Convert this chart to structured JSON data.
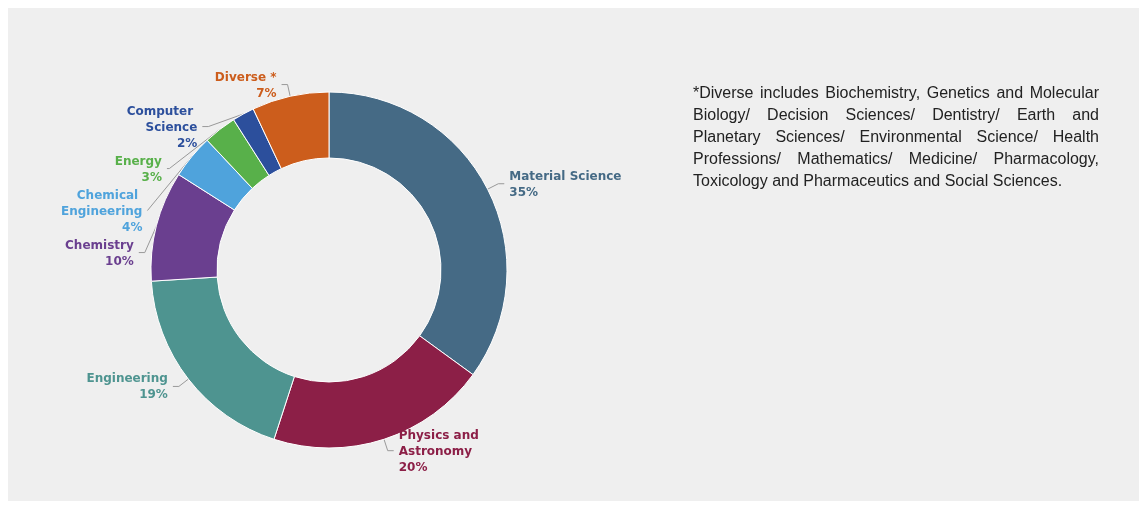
{
  "chart_data": {
    "type": "donut",
    "categories": [
      "Material Science",
      "Physics and Astronomy",
      "Engineering",
      "Chemistry",
      "Chemical Engineering",
      "Energy",
      "Computer Science",
      "Diverse *"
    ],
    "values": [
      35,
      20,
      19,
      10,
      4,
      3,
      2,
      7
    ],
    "value_labels": [
      "35%",
      "20%",
      "19%",
      "10%",
      "4%",
      "3%",
      "2%",
      "7%"
    ],
    "colors": [
      "#456a85",
      "#8c1f47",
      "#4e9490",
      "#6a3f8f",
      "#4fa3dc",
      "#58b04a",
      "#2c4f9c",
      "#cc5d1c"
    ],
    "legend": false,
    "annotations": [
      "*Diverse includes Biochemistry, Genetics and Molecular Biology/ Decision Sciences/ Dentistry/ Earth and Planetary Sciences/ Environmental Science/ Health Professions/ Mathematics/ Medicine/ Pharmacology, Toxicology and Pharmaceutics and Social Sciences."
    ]
  }
}
